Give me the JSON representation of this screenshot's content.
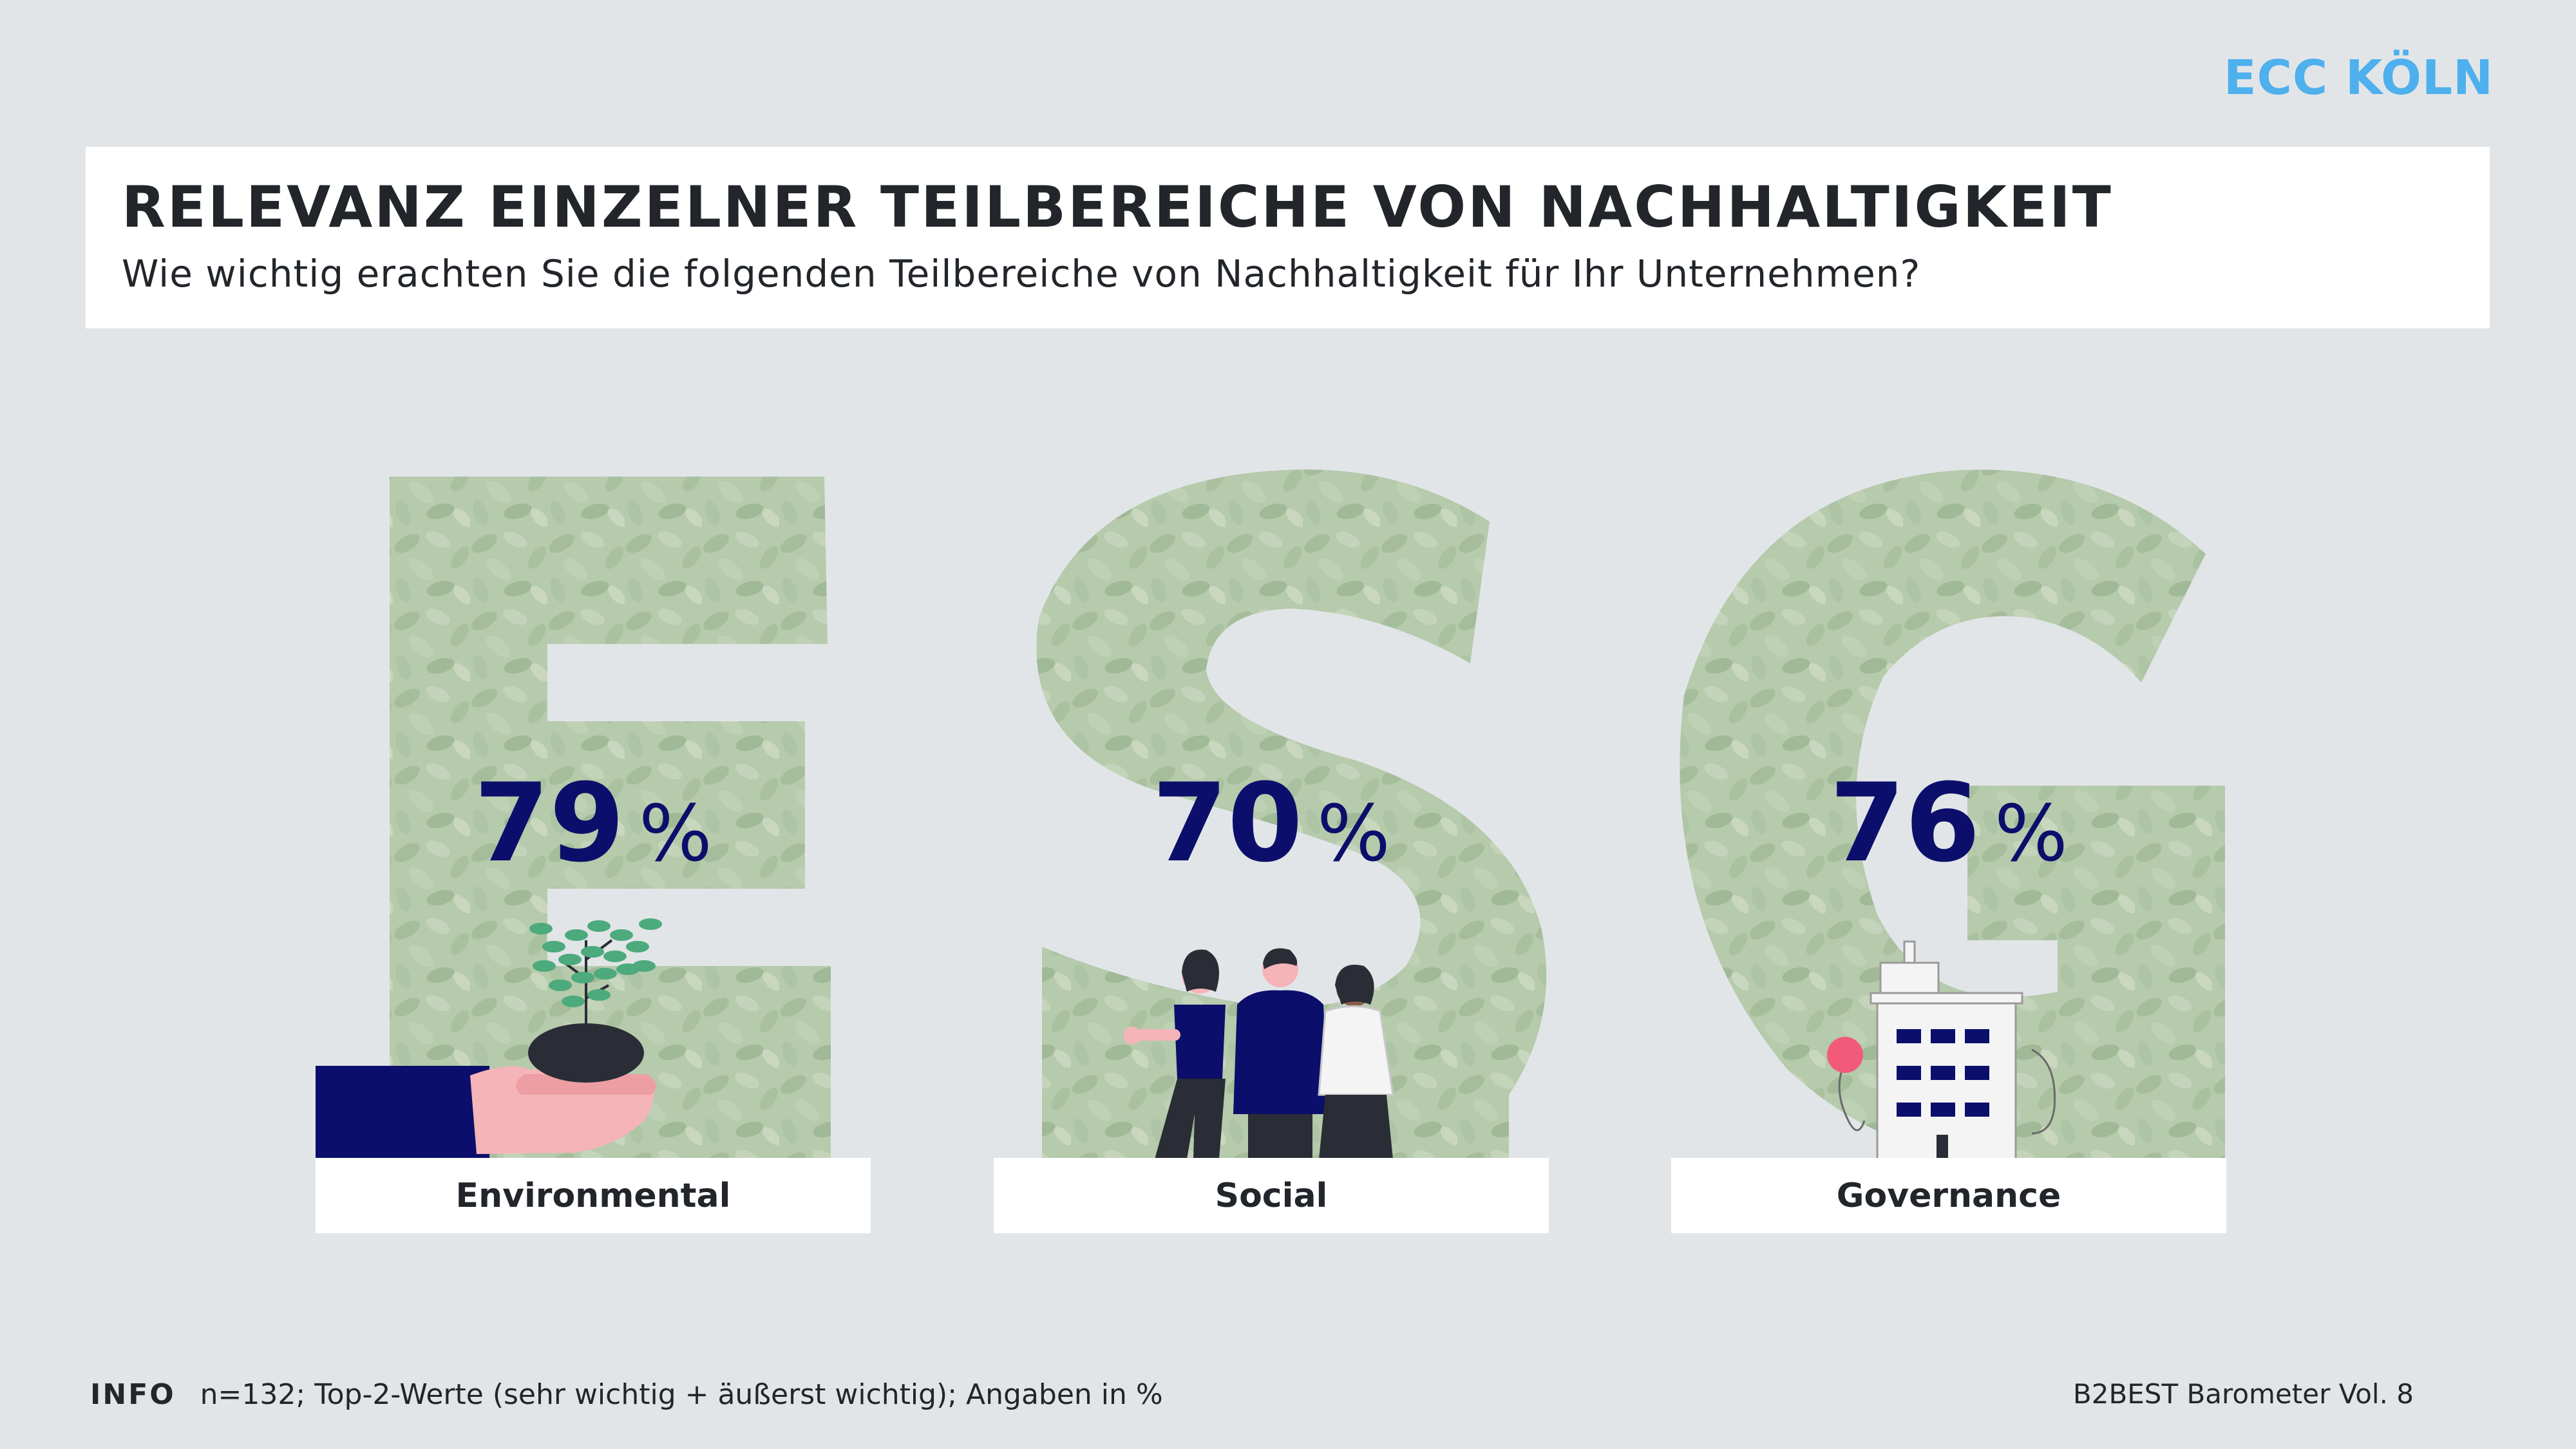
{
  "brand": "ECC KÖLN",
  "header": {
    "title": "RELEVANZ EINZELNER TEILBEREICHE VON NACHHALTIGKEIT",
    "subtitle": "Wie wichtig erachten Sie die folgenden Teilbereiche von Nachhaltigkeit für Ihr Unternehmen?"
  },
  "cards": [
    {
      "letter": "E",
      "value": "79",
      "unit": "%",
      "label": "Environmental"
    },
    {
      "letter": "S",
      "value": "70",
      "unit": "%",
      "label": "Social"
    },
    {
      "letter": "G",
      "value": "76",
      "unit": "%",
      "label": "Governance"
    }
  ],
  "footer": {
    "info_label": "INFO",
    "info_text": "n=132; Top-2-Werte (sehr wichtig + äußerst wichtig); Angaben in %",
    "source": "B2BEST Barometer Vol. 8"
  },
  "colors": {
    "background": "#e2e5e8",
    "brand": "#4eb0ec",
    "value": "#0b0f6b",
    "leaf": "#8fb27a"
  }
}
